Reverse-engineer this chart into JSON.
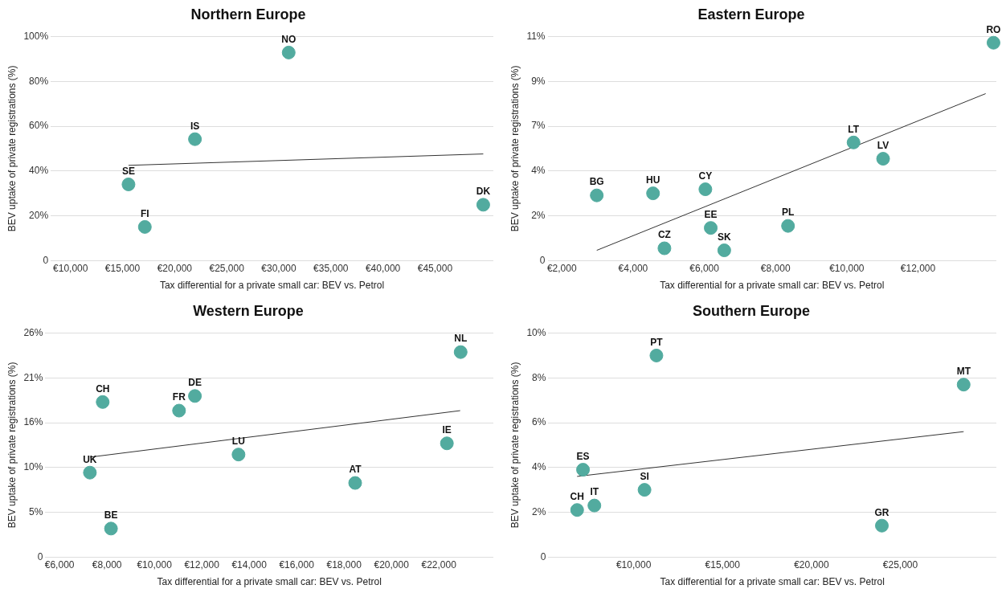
{
  "chart_data": [
    {
      "type": "scatter",
      "title": "Northern Europe",
      "xlabel": "Tax differential for a private small car: BEV vs. Petrol",
      "ylabel": "BEV uptake of private registrations (%)",
      "xlim": [
        8100,
        50600
      ],
      "ylim": [
        0,
        100
      ],
      "xticks": [
        {
          "value": 10000,
          "label": "€10,000"
        },
        {
          "value": 15000,
          "label": "€15,000"
        },
        {
          "value": 20000,
          "label": "€20,000"
        },
        {
          "value": 25000,
          "label": "€25,000"
        },
        {
          "value": 30000,
          "label": "€30,000"
        },
        {
          "value": 35000,
          "label": "€35,000"
        },
        {
          "value": 40000,
          "label": "€40,000"
        },
        {
          "value": 45000,
          "label": "€45,000"
        }
      ],
      "yticks": [
        {
          "value": 0,
          "label": "0"
        },
        {
          "value": 20,
          "label": "20%"
        },
        {
          "value": 40,
          "label": "40%"
        },
        {
          "value": 60,
          "label": "60%"
        },
        {
          "value": 80,
          "label": "80%"
        },
        {
          "value": 100,
          "label": "100%"
        }
      ],
      "grid": "y",
      "legend": false,
      "series": [
        {
          "marker": "circle",
          "color": "#52ab9f",
          "x": [
            30950,
            21950,
            15570,
            17140,
            49630
          ],
          "values": [
            92.9,
            54.2,
            34.0,
            15.0,
            24.9
          ]
        },
        {
          "type": "line",
          "marker": "none",
          "color": "#333333",
          "x": [
            15570,
            49630
          ],
          "values": [
            42.5,
            47.6
          ]
        }
      ],
      "annotations": [
        {
          "text": "NO",
          "x": 30950,
          "y": 92.9
        },
        {
          "text": "IS",
          "x": 21950,
          "y": 54.2
        },
        {
          "text": "SE",
          "x": 15570,
          "y": 34.0
        },
        {
          "text": "FI",
          "x": 17140,
          "y": 15.0
        },
        {
          "text": "DK",
          "x": 49630,
          "y": 24.9
        }
      ]
    },
    {
      "type": "scatter",
      "title": "Eastern Europe",
      "xlabel": "Tax differential for a private small car: BEV vs. Petrol",
      "ylabel": "BEV uptake of private registrations (%)",
      "xlim": [
        1600,
        14200
      ],
      "ylim": [
        0,
        11
      ],
      "xticks": [
        {
          "value": 2000,
          "label": "€2,000"
        },
        {
          "value": 4000,
          "label": "€4,000"
        },
        {
          "value": 6000,
          "label": "€6,000"
        },
        {
          "value": 8000,
          "label": "€8,000"
        },
        {
          "value": 10000,
          "label": "€10,000"
        },
        {
          "value": 12000,
          "label": "€12,000"
        }
      ],
      "yticks": [
        {
          "value": 0,
          "label": "0"
        },
        {
          "value": 2.2,
          "label": "2%"
        },
        {
          "value": 4.4,
          "label": "4%"
        },
        {
          "value": 6.6,
          "label": "7%"
        },
        {
          "value": 8.8,
          "label": "9%"
        },
        {
          "value": 11,
          "label": "11%"
        }
      ],
      "grid": "y",
      "legend": false,
      "series": [
        {
          "marker": "circle",
          "color": "#52ab9f",
          "x": [
            14120,
            10190,
            11020,
            2980,
            4560,
            6030,
            6180,
            8350,
            4880,
            6560
          ],
          "values": [
            10.7,
            5.8,
            5.0,
            3.2,
            3.3,
            3.5,
            1.6,
            1.7,
            0.6,
            0.5
          ]
        },
        {
          "type": "line",
          "marker": "none",
          "color": "#333333",
          "x": [
            2980,
            13900
          ],
          "values": [
            0.5,
            8.2
          ]
        }
      ],
      "annotations": [
        {
          "text": "RO",
          "x": 14120,
          "y": 10.7
        },
        {
          "text": "LT",
          "x": 10190,
          "y": 5.8
        },
        {
          "text": "LV",
          "x": 11020,
          "y": 5.0
        },
        {
          "text": "BG",
          "x": 2980,
          "y": 3.2
        },
        {
          "text": "HU",
          "x": 4560,
          "y": 3.3
        },
        {
          "text": "CY",
          "x": 6030,
          "y": 3.5
        },
        {
          "text": "EE",
          "x": 6180,
          "y": 1.6
        },
        {
          "text": "PL",
          "x": 8350,
          "y": 1.7
        },
        {
          "text": "CZ",
          "x": 4880,
          "y": 0.6
        },
        {
          "text": "SK",
          "x": 6560,
          "y": 0.5
        }
      ]
    },
    {
      "type": "scatter",
      "title": "Western Europe",
      "xlabel": "Tax differential for a private small car: BEV vs. Petrol",
      "ylabel": "BEV uptake of private registrations (%)",
      "xlim": [
        5400,
        24300
      ],
      "ylim": [
        0,
        26
      ],
      "xticks": [
        {
          "value": 6000,
          "label": "€6,000"
        },
        {
          "value": 8000,
          "label": "€8,000"
        },
        {
          "value": 10000,
          "label": "€10,000"
        },
        {
          "value": 12000,
          "label": "€12,000"
        },
        {
          "value": 14000,
          "label": "€14,000"
        },
        {
          "value": 16000,
          "label": "€16,000"
        },
        {
          "value": 18000,
          "label": "€18,000"
        },
        {
          "value": 20000,
          "label": "€20,000"
        },
        {
          "value": 22000,
          "label": "€22,000"
        }
      ],
      "yticks": [
        {
          "value": 0,
          "label": "0"
        },
        {
          "value": 5.2,
          "label": "5%"
        },
        {
          "value": 10.4,
          "label": "10%"
        },
        {
          "value": 15.6,
          "label": "16%"
        },
        {
          "value": 20.8,
          "label": "21%"
        },
        {
          "value": 26,
          "label": "26%"
        }
      ],
      "grid": "y",
      "legend": false,
      "series": [
        {
          "marker": "circle",
          "color": "#52ab9f",
          "x": [
            22920,
            7820,
            11710,
            11040,
            13550,
            22340,
            7280,
            18470,
            8170
          ],
          "values": [
            23.8,
            18.0,
            18.7,
            17.0,
            11.9,
            13.2,
            9.8,
            8.6,
            3.3
          ]
        },
        {
          "type": "line",
          "marker": "none",
          "color": "#333333",
          "x": [
            7290,
            22900
          ],
          "values": [
            11.6,
            17.0
          ]
        }
      ],
      "annotations": [
        {
          "text": "NL",
          "x": 22920,
          "y": 23.8
        },
        {
          "text": "CH",
          "x": 7820,
          "y": 18.0
        },
        {
          "text": "DE",
          "x": 11710,
          "y": 18.7
        },
        {
          "text": "FR",
          "x": 11040,
          "y": 17.0
        },
        {
          "text": "LU",
          "x": 13550,
          "y": 11.9
        },
        {
          "text": "IE",
          "x": 22340,
          "y": 13.2
        },
        {
          "text": "UK",
          "x": 7280,
          "y": 9.8
        },
        {
          "text": "AT",
          "x": 18470,
          "y": 8.6
        },
        {
          "text": "BE",
          "x": 8170,
          "y": 3.3
        }
      ]
    },
    {
      "type": "scatter",
      "title": "Southern Europe",
      "xlabel": "Tax differential for a private small car: BEV vs. Petrol",
      "ylabel": "BEV uptake of private registrations (%)",
      "xlim": [
        5200,
        30400
      ],
      "ylim": [
        0,
        10
      ],
      "xticks": [
        {
          "value": 10000,
          "label": "€10,000"
        },
        {
          "value": 15000,
          "label": "€15,000"
        },
        {
          "value": 20000,
          "label": "€20,000"
        },
        {
          "value": 25000,
          "label": "€25,000"
        }
      ],
      "yticks": [
        {
          "value": 0,
          "label": "0"
        },
        {
          "value": 2,
          "label": "2%"
        },
        {
          "value": 4,
          "label": "4%"
        },
        {
          "value": 6,
          "label": "6%"
        },
        {
          "value": 8,
          "label": "8%"
        },
        {
          "value": 10,
          "label": "10%"
        }
      ],
      "grid": "y",
      "legend": false,
      "series": [
        {
          "marker": "circle",
          "color": "#52ab9f",
          "x": [
            11280,
            28560,
            7150,
            10610,
            7790,
            6820,
            23960
          ],
          "values": [
            9.0,
            7.7,
            3.9,
            3.0,
            2.3,
            2.1,
            1.4
          ]
        },
        {
          "type": "line",
          "marker": "none",
          "color": "#333333",
          "x": [
            6820,
            28560
          ],
          "values": [
            3.6,
            5.6
          ]
        }
      ],
      "annotations": [
        {
          "text": "PT",
          "x": 11280,
          "y": 9.0
        },
        {
          "text": "MT",
          "x": 28560,
          "y": 7.7
        },
        {
          "text": "ES",
          "x": 7150,
          "y": 3.9
        },
        {
          "text": "SI",
          "x": 10610,
          "y": 3.0
        },
        {
          "text": "IT",
          "x": 7790,
          "y": 2.3
        },
        {
          "text": "CH",
          "x": 6820,
          "y": 2.1
        },
        {
          "text": "GR",
          "x": 23960,
          "y": 1.4
        }
      ]
    }
  ]
}
